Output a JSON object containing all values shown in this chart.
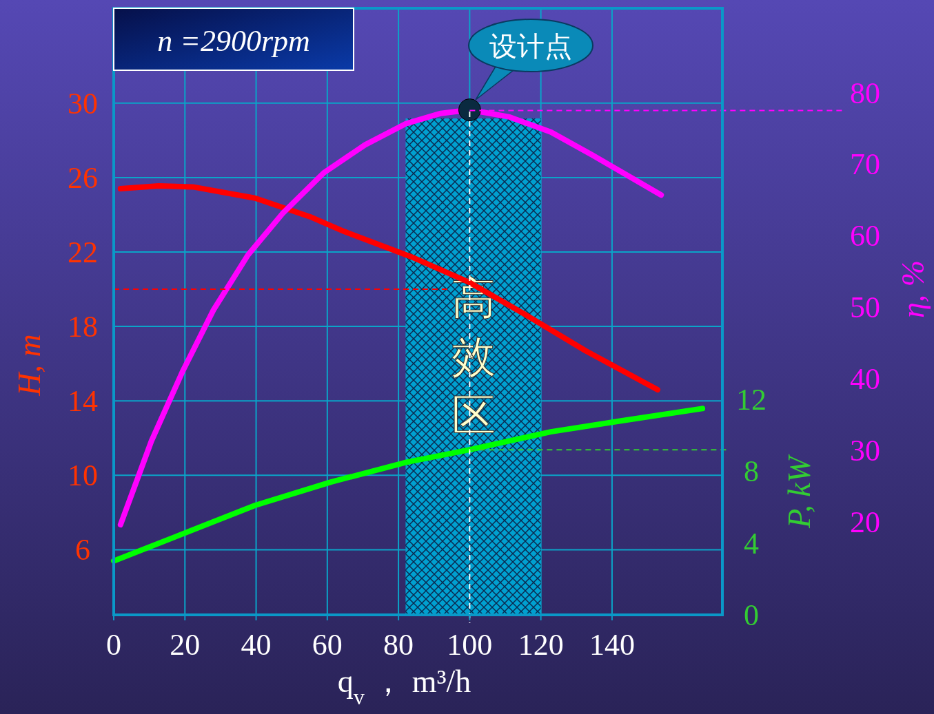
{
  "chart_data": {
    "type": "line",
    "xlabel": "q$_{v}$ ，  m³/h",
    "ylabel": "H, m",
    "y2label": "η, %",
    "y3label": "P, kW",
    "xlim": [
      0,
      171
    ],
    "xticks": [
      0,
      20,
      40,
      60,
      80,
      100,
      120,
      140
    ],
    "ylim": [
      2.5,
      35.1
    ],
    "yticks": [
      6,
      10,
      14,
      18,
      22,
      26,
      30
    ],
    "y2lim": [
      7,
      91.8
    ],
    "y2ticks": [
      20,
      30,
      40,
      50,
      60,
      70,
      80
    ],
    "y3lim": [
      0,
      33.8
    ],
    "y3ticks": [
      0,
      4,
      8,
      12
    ],
    "grid": true,
    "series": [
      {
        "axis": "y",
        "color": "#ff0000",
        "x": [
          1.9,
          12.6,
          22.2,
          39.7,
          55.1,
          64.8,
          84.1,
          99.6,
          115.1,
          132.5,
          152.8
        ],
        "values": [
          25.4,
          25.55,
          25.5,
          24.9,
          23.9,
          23.1,
          21.7,
          20.4,
          18.7,
          16.7,
          14.6
        ]
      },
      {
        "axis": "y2",
        "color": "#ff00ff",
        "x": [
          1.9,
          10.6,
          19.3,
          28.0,
          37.7,
          47.4,
          59.0,
          70.6,
          82.2,
          91.9,
          100,
          111.2,
          122.8,
          134.4,
          153.8
        ],
        "values": [
          19.6,
          31.3,
          41,
          49.6,
          57.3,
          63.1,
          68.8,
          72.7,
          75.7,
          77.1,
          77.6,
          76.6,
          74.5,
          71.3,
          65.7
        ]
      },
      {
        "axis": "y3",
        "color": "#00ff00",
        "x": [
          0,
          39.7,
          61,
          82.2,
          100,
          122.8,
          142.2,
          165.4
        ],
        "values": [
          3.0,
          6.1,
          7.4,
          8.5,
          9.2,
          10.2,
          10.8,
          11.5
        ]
      },
      {
        "type": "scatter",
        "axis": "y2",
        "color": "#0a2a40",
        "marker": "circle",
        "x": [
          100
        ],
        "values": [
          77.6
        ]
      }
    ],
    "bands": [
      {
        "axis": "x",
        "from": 82,
        "to": 120,
        "label": "高效区",
        "color": "#00a0d0"
      }
    ],
    "ref_lines": [
      {
        "axis": "x",
        "value": 100,
        "color": "#ffffff",
        "line_style": "dashed"
      },
      {
        "axis": "y",
        "value": 20,
        "color": "#ff0000",
        "line_style": "dashed"
      },
      {
        "axis": "y2",
        "value": 77.5,
        "color": "#ff00ff",
        "line_style": "dashed"
      },
      {
        "axis": "y3",
        "value": 9.2,
        "color": "#33cc33",
        "line_style": "dashed"
      }
    ],
    "annotations": [
      "n =2900rpm",
      "设计点"
    ]
  }
}
